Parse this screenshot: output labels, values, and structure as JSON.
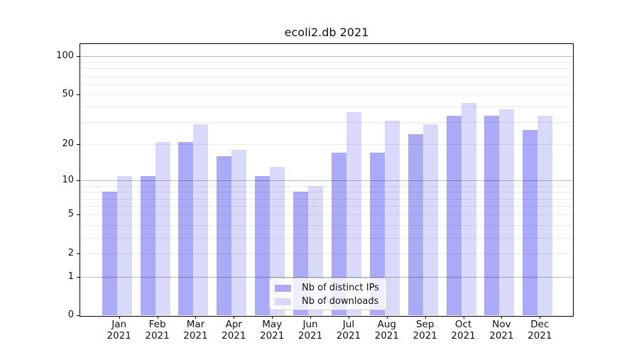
{
  "figure": {
    "title": "ecoli2.db 2021"
  },
  "chart_data": {
    "type": "bar",
    "title": "ecoli2.db 2021",
    "categories": [
      "Jan",
      "Feb",
      "Mar",
      "Apr",
      "May",
      "Jun",
      "Jul",
      "Aug",
      "Sep",
      "Oct",
      "Nov",
      "Dec"
    ],
    "category_year": "2021",
    "series": [
      {
        "name": "Nb of distinct IPs",
        "color": "#aaaaf8",
        "values": [
          8,
          11,
          21,
          16,
          11,
          8,
          17,
          17,
          24,
          34,
          34,
          26
        ]
      },
      {
        "name": "Nb of downloads",
        "color": "#d9d9f9",
        "values": [
          11,
          21,
          29,
          18,
          13,
          9,
          36,
          31,
          29,
          43,
          38,
          34
        ]
      }
    ],
    "xlabel": "",
    "ylabel": "",
    "y_scale": "log1p",
    "ylim": [
      0,
      124
    ],
    "y_axis_ticks": [
      0,
      1,
      2,
      5,
      10,
      20,
      50,
      100
    ],
    "y_major_gridlines": [
      1,
      10,
      100
    ],
    "y_minor_gridlines": [
      2,
      3,
      4,
      5,
      6,
      7,
      8,
      9,
      20,
      30,
      40,
      50,
      60,
      70,
      80,
      90
    ],
    "grid": true,
    "legend_position": "lower center"
  },
  "legend": {
    "items": [
      "Nb of distinct IPs",
      "Nb of downloads"
    ]
  },
  "colors": {
    "bar_distinct_ips": "#aaaaf8",
    "bar_downloads": "#d9d9f9",
    "grid_major": "rgba(0,0,0,0.27)",
    "grid_minor": "rgba(0,0,0,0.08)",
    "axis": "#000000",
    "text": "#111111",
    "legend_bg": "rgba(255,255,255,0.8)",
    "legend_border": "#cccccc"
  }
}
